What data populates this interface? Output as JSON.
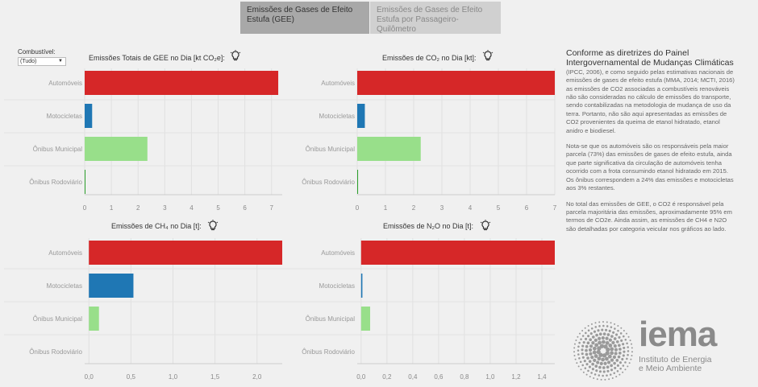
{
  "tabs": [
    {
      "label": "Emissões de Gases de Efeito Estufa (GEE)",
      "active": true
    },
    {
      "label": "Emissões de Gases de Efeito Estufa por Passageiro-Quilômetro",
      "active": false
    }
  ],
  "filter": {
    "label": "Combustível:",
    "value": "(Tudo)"
  },
  "colors": {
    "automoveis": "#d62728",
    "motocicletas": "#1f77b4",
    "onibus_municipal": "#98df8a",
    "onibus_rodoviario": "#2ca02c",
    "axis": "#cccccc",
    "tick": "#888888",
    "label": "#999999"
  },
  "chart_data": [
    {
      "type": "bar",
      "orientation": "horizontal",
      "title": "Emissões Totais de GEE no Dia [kt CO₂e]:",
      "categories": [
        "Automóveis",
        "Motocicletas",
        "Ônibus Municipal",
        "Ônibus Rodoviário"
      ],
      "values": [
        7.25,
        0.28,
        2.35,
        0.03
      ],
      "xlim": [
        0,
        7.4
      ],
      "ticks": [
        "0",
        "1",
        "2",
        "3",
        "4",
        "5",
        "6",
        "7"
      ],
      "tick_values": [
        0,
        1,
        2,
        3,
        4,
        5,
        6,
        7
      ]
    },
    {
      "type": "bar",
      "orientation": "horizontal",
      "title": "Emissões de CO₂ no Dia [kt]:",
      "categories": [
        "Automóveis",
        "Motocicletas",
        "Ônibus Municipal",
        "Ônibus Rodoviário"
      ],
      "values": [
        7.0,
        0.27,
        2.25,
        0.03
      ],
      "xlim": [
        0,
        7.0
      ],
      "ticks": [
        "0",
        "1",
        "2",
        "3",
        "4",
        "5",
        "6",
        "7"
      ],
      "tick_values": [
        0,
        1,
        2,
        3,
        4,
        5,
        6,
        7
      ]
    },
    {
      "type": "bar",
      "orientation": "horizontal",
      "title": "Emissões de CH₄ no Dia [t]:",
      "categories": [
        "Automóveis",
        "Motocicletas",
        "Ônibus Municipal",
        "Ônibus Rodoviário"
      ],
      "values": [
        2.3,
        0.53,
        0.12,
        0.0
      ],
      "xlim": [
        -0.05,
        2.3
      ],
      "ticks": [
        "0,0",
        "0,5",
        "1,0",
        "1,5",
        "2,0"
      ],
      "tick_values": [
        0,
        0.5,
        1.0,
        1.5,
        2.0
      ]
    },
    {
      "type": "bar",
      "orientation": "horizontal",
      "title": "Emissões de N₂O no Dia [t]:",
      "categories": [
        "Automóveis",
        "Motocicletas",
        "Ônibus Municipal",
        "Ônibus Rodoviário"
      ],
      "values": [
        1.5,
        0.01,
        0.07,
        0.0
      ],
      "xlim": [
        -0.03,
        1.5
      ],
      "ticks": [
        "0,0",
        "0,2",
        "0,4",
        "0,6",
        "0,8",
        "1,0",
        "1,2",
        "1,4"
      ],
      "tick_values": [
        0,
        0.2,
        0.4,
        0.6,
        0.8,
        1.0,
        1.2,
        1.4
      ]
    }
  ],
  "text_panel": {
    "heading": "Conforme as diretrizes do Painel Intergovernamental de Mudanças Climáticas",
    "p1_after_heading": " (IPCC, 2006), e como seguido pelas estimativas nacionais de emissões de gases de efeito estufa (MMA, 2014; MCTI, 2016) as emissões de CO2 associadas a combustíveis renováveis não são consideradas no cálculo de emissões do transporte, sendo contabilizadas na metodologia de mudança de uso da terra. Portanto, não são aqui apresentadas as emissões de CO2 provenientes da queima de etanol hidratado, etanol anidro e biodiesel.",
    "p2": "Nota-se que os automóveis são os responsáveis pela maior parcela (73%) das emissões de gases de efeito estufa, ainda que parte significativa da circulação de automóveis tenha ocorrido com a frota consumindo etanol hidratado em 2015. Os ônibus correspondem a 24% das emissões e motocicletas aos 3% restantes.",
    "p3": "No total das emissões de GEE, o CO2 é responsável pela parcela majoritária das emissões, aproximadamente 95% em termos de CO2e. Ainda assim, as emissões de CH4 e N2O são detalhadas por categoria veicular nos gráficos ao lado."
  },
  "logo": {
    "word": "iema",
    "line1": "Instituto de Energia",
    "line2": "e Meio Ambiente"
  },
  "icons": {
    "info": "lightbulb-icon",
    "dropdown": "chevron-down-icon"
  }
}
